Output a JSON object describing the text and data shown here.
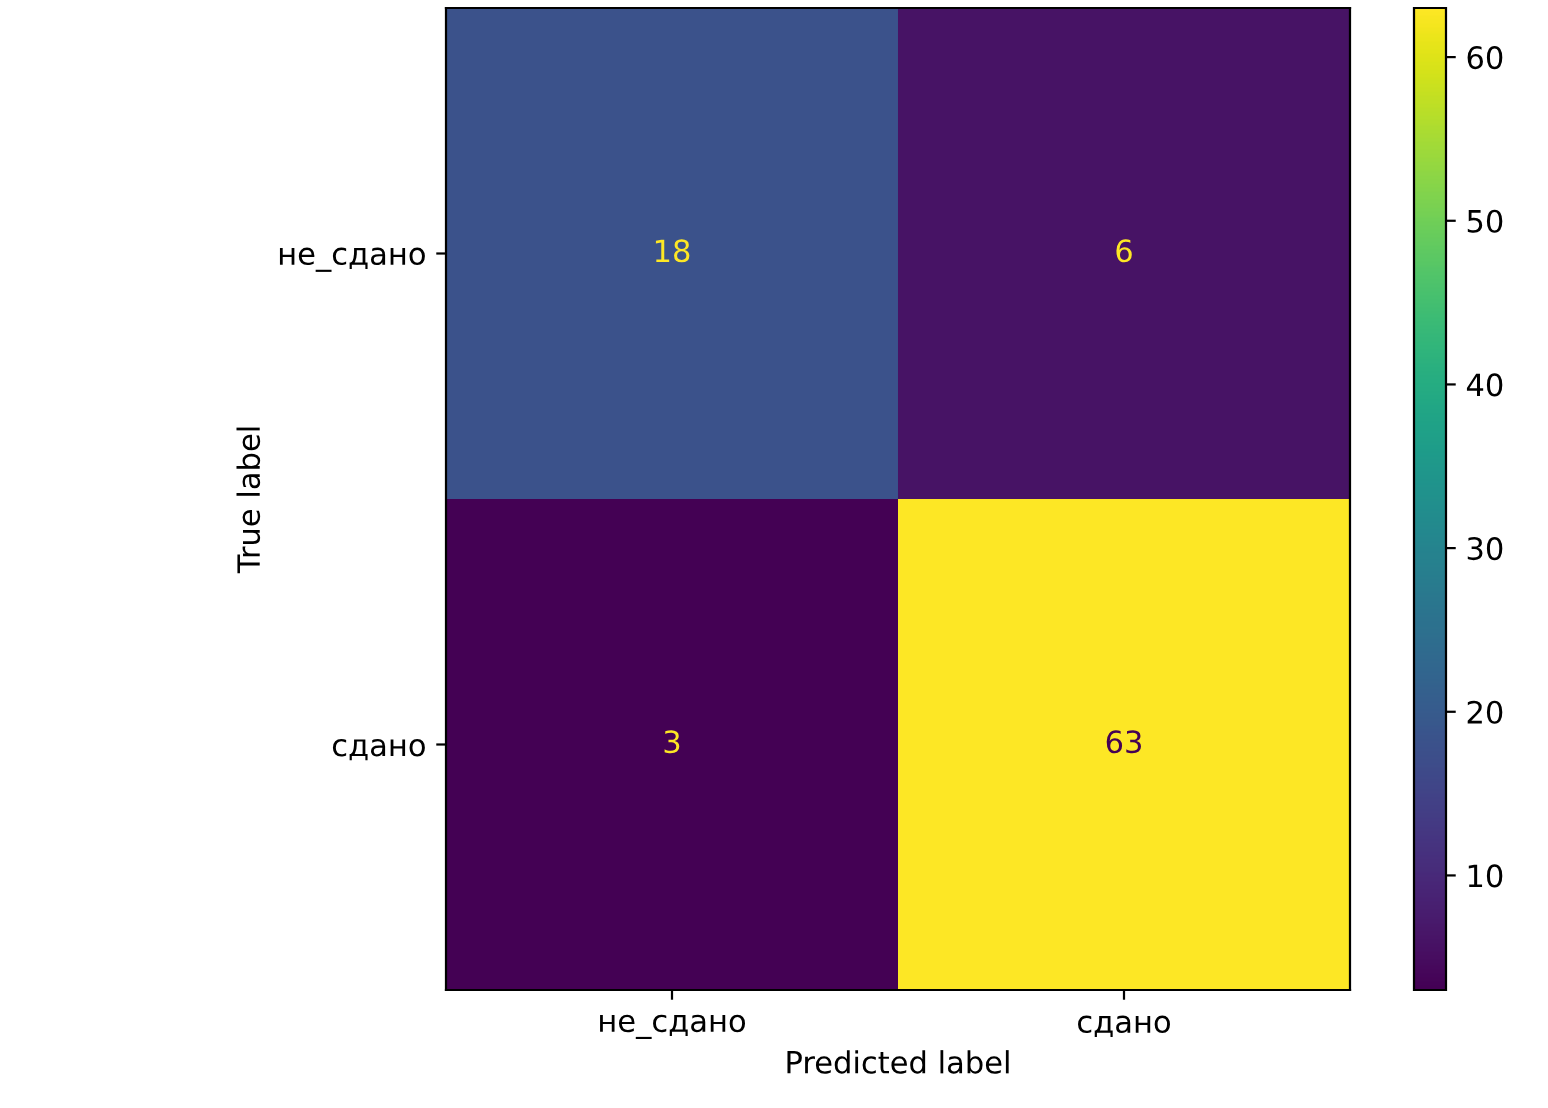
{
  "chart_data": {
    "type": "heatmap",
    "xlabel": "Predicted label",
    "ylabel": "True label",
    "categories": [
      "не_сдано",
      "сдано"
    ],
    "y_categories": [
      "не_сдано",
      "сдано"
    ],
    "cells": [
      [
        18,
        6
      ],
      [
        3,
        63
      ]
    ],
    "clim": [
      3,
      63
    ],
    "cticks": [
      10,
      20,
      30,
      40,
      50,
      60
    ],
    "data_labels": true,
    "grid": false
  }
}
